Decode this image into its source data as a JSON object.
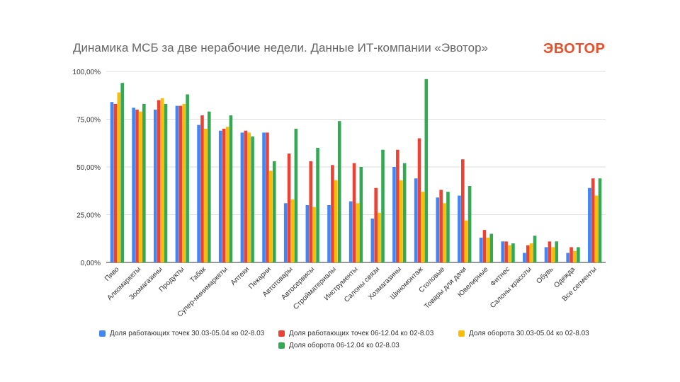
{
  "header": {
    "title": "Динамика МСБ за две нерабочие недели. Данные ИТ-компании «Эвотор»",
    "logo": "ЭВОТОР"
  },
  "colors": {
    "series": [
      "#4285f4",
      "#ea4335",
      "#fbbc04",
      "#34a853"
    ],
    "logo": "#e8502a",
    "grid": "#dddddd"
  },
  "chart_data": {
    "type": "bar",
    "title": "Динамика МСБ за две нерабочие недели. Данные ИТ-компании «Эвотор»",
    "ylim": [
      0,
      100
    ],
    "yticks": [
      "0,00%",
      "25,00%",
      "50,00%",
      "75,00%",
      "100,00%"
    ],
    "grid": true,
    "legend_position": "bottom",
    "categories": [
      "Пиво",
      "Алкомаркеты",
      "Зоомагазины",
      "Продукты",
      "Табак",
      "Супер-минимаркеты",
      "Аптеки",
      "Пекарни",
      "Автотовары",
      "Автосервисы",
      "Стройматериалы",
      "Инструменты",
      "Салоны связи",
      "Хозмагазины",
      "Шиномонтаж",
      "Столовые",
      "Товары для дачи",
      "Ювелирные",
      "Фитнес",
      "Салоны красоты",
      "Обувь",
      "Одежда",
      "Все сегменты"
    ],
    "series": [
      {
        "name": "Доля работающих точек 30.03-05.04 ко 02-8.03",
        "values": [
          84,
          81,
          80,
          82,
          72,
          69,
          68,
          68,
          31,
          30,
          30,
          32,
          23,
          50,
          44,
          34,
          35,
          13,
          11,
          5,
          8,
          5,
          39
        ]
      },
      {
        "name": "Доля работающих точек 06-12.04 ко 02-8.03",
        "values": [
          83,
          80,
          85,
          82,
          77,
          70,
          69,
          68,
          57,
          53,
          51,
          52,
          39,
          59,
          65,
          38,
          54,
          17,
          11,
          9,
          11,
          8,
          44
        ]
      },
      {
        "name": "Доля оборота 30.03-05.04 ко 02-8.03",
        "values": [
          89,
          79,
          86,
          83,
          70,
          71,
          68,
          48,
          33,
          29,
          43,
          31,
          26,
          43,
          37,
          31,
          22,
          13,
          9,
          10,
          8,
          6,
          35
        ]
      },
      {
        "name": "Доля оборота 06-12.04 ко 02-8.03",
        "values": [
          94,
          83,
          83,
          88,
          79,
          77,
          66,
          53,
          70,
          60,
          74,
          50,
          59,
          52,
          96,
          37,
          40,
          15,
          10,
          14,
          11,
          8,
          44
        ]
      }
    ]
  }
}
